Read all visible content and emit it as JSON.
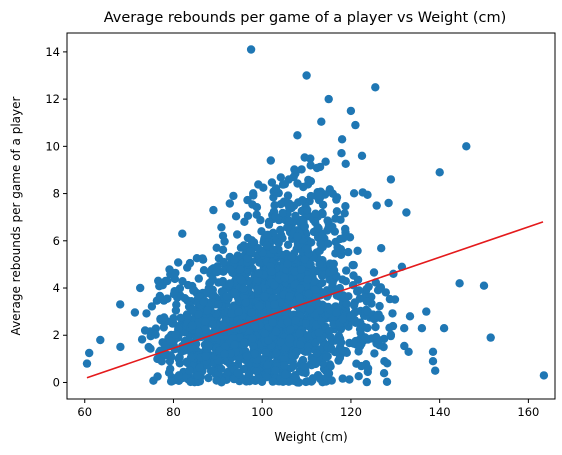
{
  "chart_data": {
    "type": "scatter",
    "title": "Average rebounds per game of a player vs Weight (cm)",
    "xlabel": "Weight (cm)",
    "ylabel": "Average rebounds per game of a player",
    "xlim": [
      56,
      166
    ],
    "ylim": [
      -0.7,
      14.8
    ],
    "x_ticks": [
      60,
      80,
      100,
      120,
      140,
      160
    ],
    "y_ticks": [
      0,
      2,
      4,
      6,
      8,
      10,
      12,
      14
    ],
    "grid": false,
    "legend": "none",
    "point_color": "#1f77b4",
    "line_color": "#e41a1c",
    "trend_line": {
      "x": [
        60.5,
        163.3
      ],
      "y": [
        0.2,
        6.8
      ]
    },
    "outliers": [
      {
        "x": 97.5,
        "y": 14.1
      },
      {
        "x": 110,
        "y": 13.0
      },
      {
        "x": 125.5,
        "y": 12.5
      },
      {
        "x": 146,
        "y": 10.0
      },
      {
        "x": 140,
        "y": 8.9
      },
      {
        "x": 163.5,
        "y": 0.3
      },
      {
        "x": 151.5,
        "y": 1.9
      },
      {
        "x": 150,
        "y": 4.1
      },
      {
        "x": 144.5,
        "y": 4.2
      },
      {
        "x": 141,
        "y": 2.3
      },
      {
        "x": 138.5,
        "y": 1.3
      },
      {
        "x": 138.5,
        "y": 0.9
      },
      {
        "x": 139,
        "y": 0.5
      },
      {
        "x": 136,
        "y": 2.3
      },
      {
        "x": 137,
        "y": 3.0
      },
      {
        "x": 133,
        "y": 1.3
      },
      {
        "x": 132,
        "y": 2.3
      },
      {
        "x": 131.5,
        "y": 4.9
      },
      {
        "x": 132.5,
        "y": 7.2
      },
      {
        "x": 129,
        "y": 8.6
      },
      {
        "x": 128.5,
        "y": 7.6
      },
      {
        "x": 63.5,
        "y": 1.8
      },
      {
        "x": 60.5,
        "y": 0.8
      },
      {
        "x": 61,
        "y": 1.25
      },
      {
        "x": 72.5,
        "y": 4.0
      },
      {
        "x": 82,
        "y": 6.3
      },
      {
        "x": 89,
        "y": 7.3
      },
      {
        "x": 93.5,
        "y": 7.9
      },
      {
        "x": 122.5,
        "y": 9.6
      },
      {
        "x": 120,
        "y": 11.5
      },
      {
        "x": 115,
        "y": 12.0
      },
      {
        "x": 121,
        "y": 10.9
      },
      {
        "x": 118,
        "y": 10.3
      }
    ],
    "clusters": [
      {
        "cx": 101,
        "cy": 2.6,
        "sx": 9.5,
        "sy": 1.5,
        "n": 1100
      },
      {
        "cx": 106,
        "cy": 5.0,
        "sx": 6.5,
        "sy": 1.6,
        "n": 350
      },
      {
        "cx": 110,
        "cy": 7.6,
        "sx": 5.5,
        "sy": 1.3,
        "n": 90
      },
      {
        "cx": 86,
        "cy": 1.8,
        "sx": 6.0,
        "sy": 1.2,
        "n": 250
      },
      {
        "cx": 121,
        "cy": 2.4,
        "sx": 5.0,
        "sy": 1.4,
        "n": 120
      }
    ]
  }
}
